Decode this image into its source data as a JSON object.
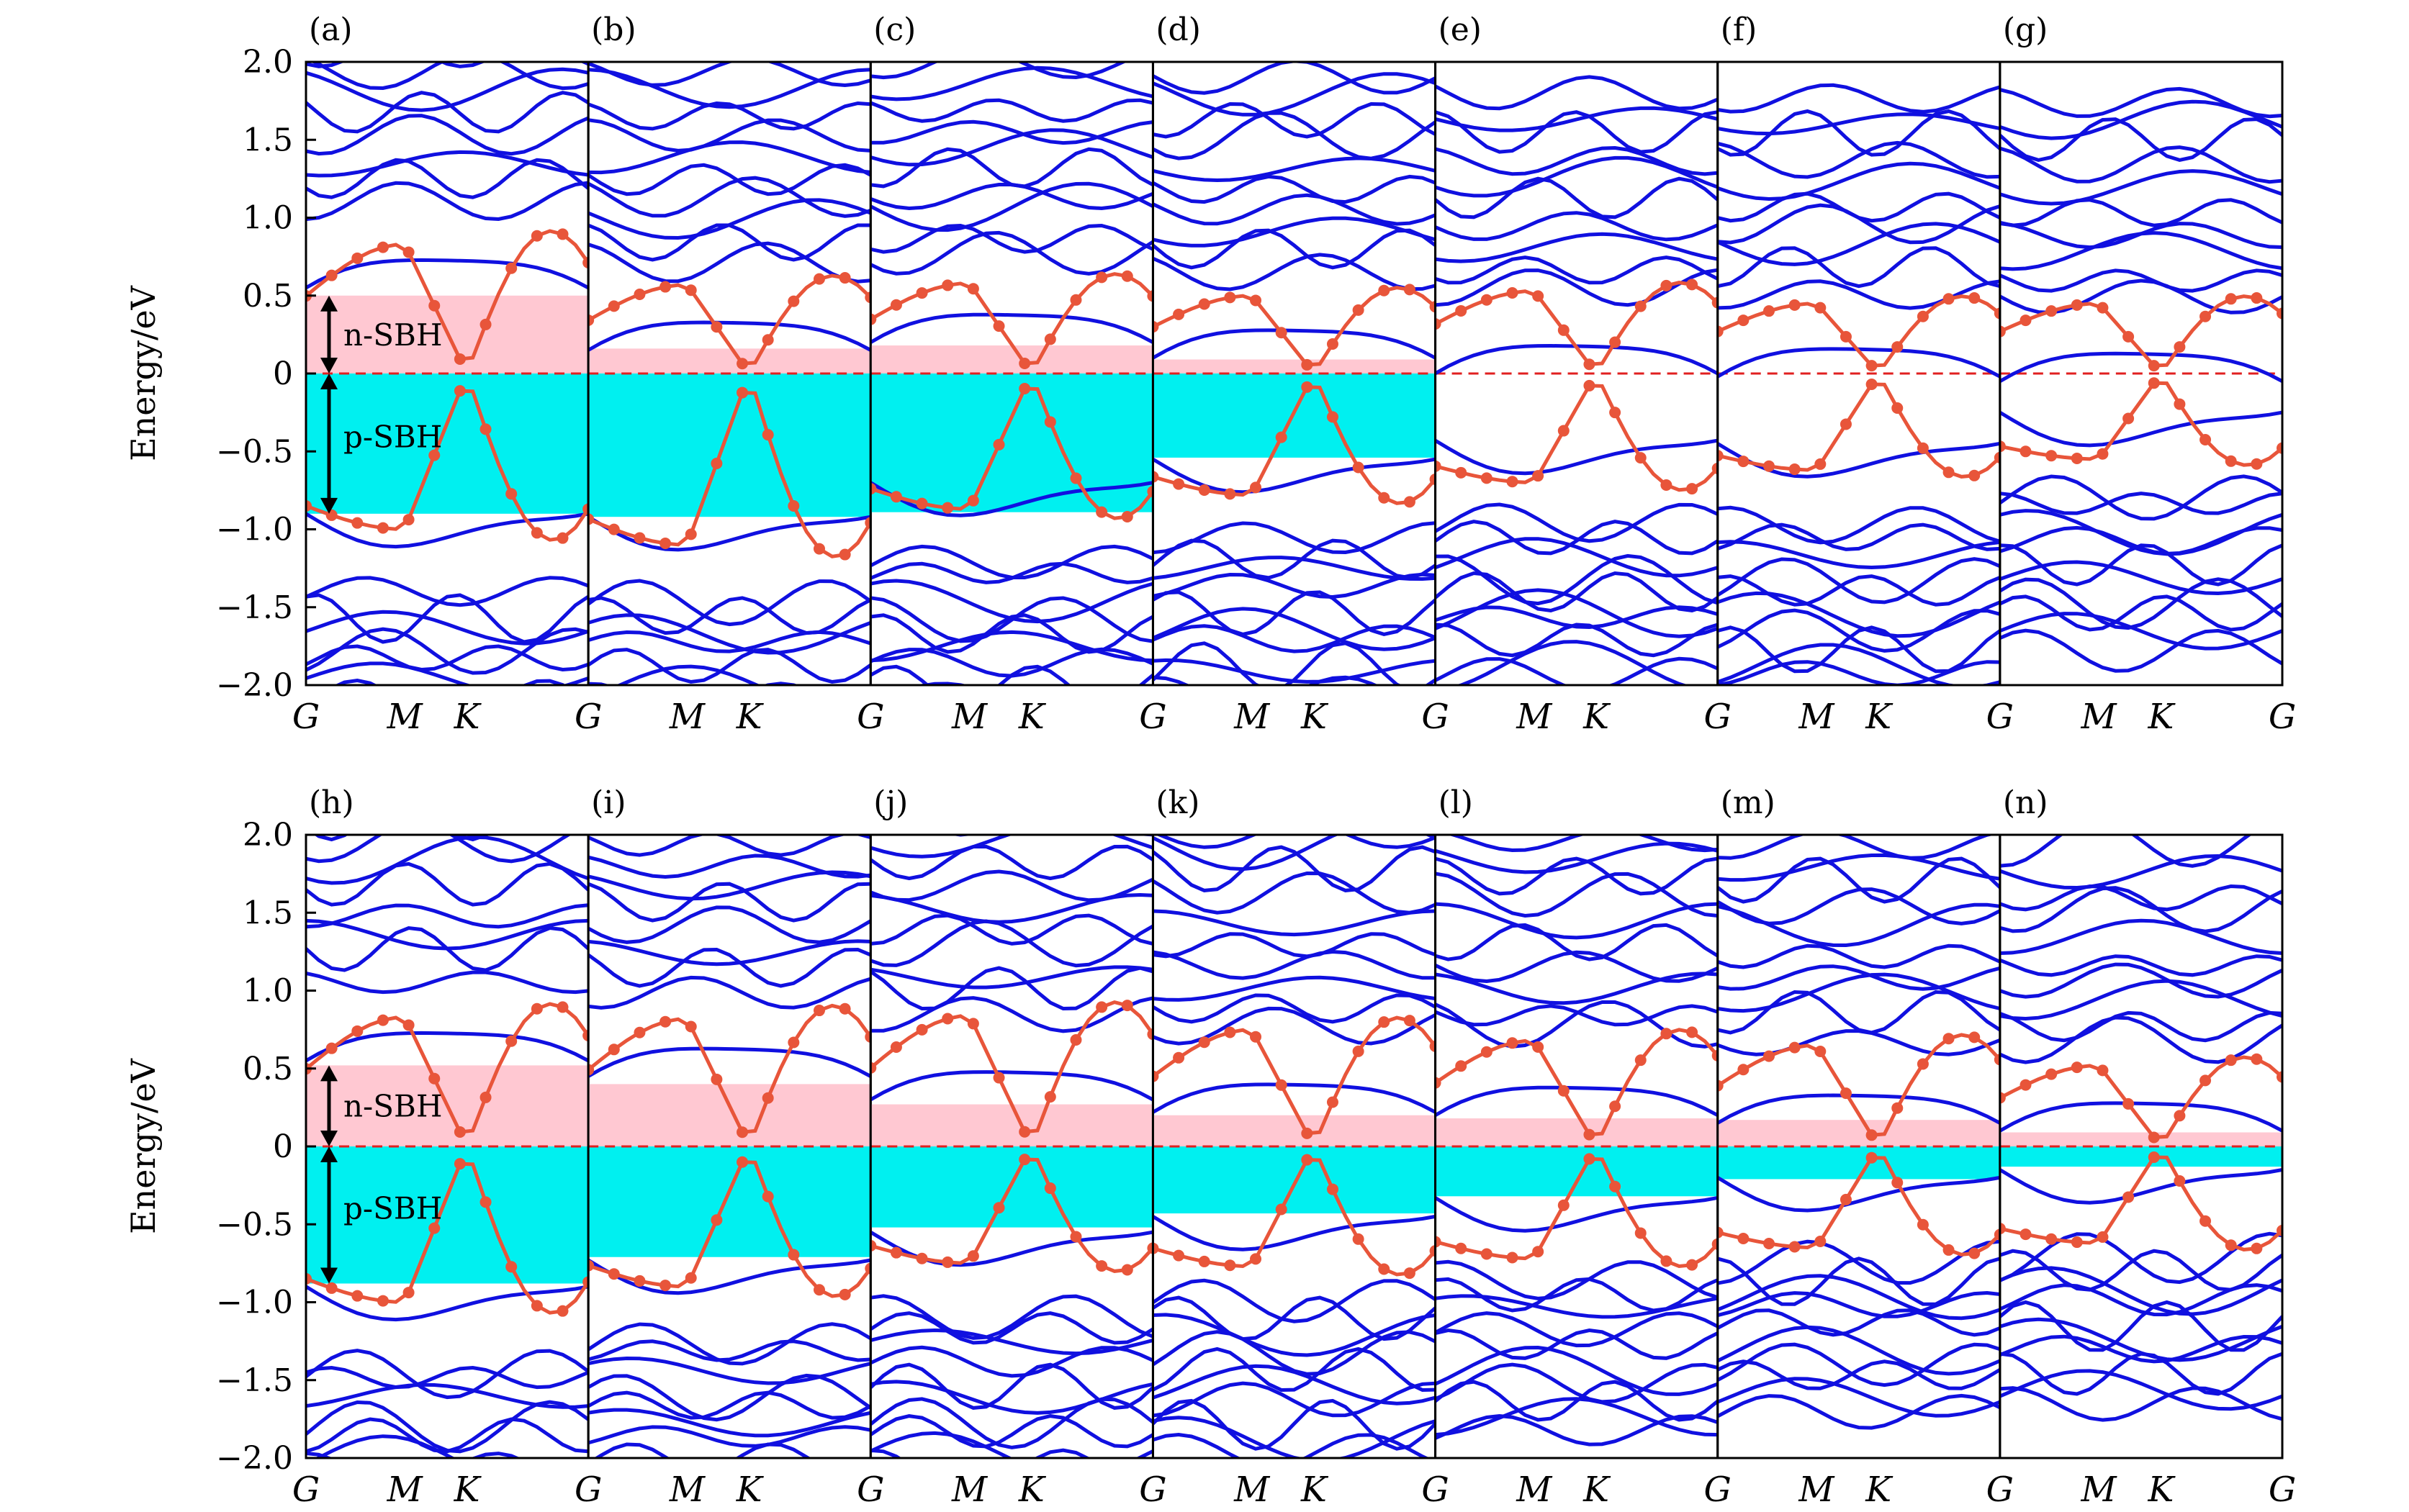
{
  "chart_data": {
    "type": "line",
    "ylabel": "Energy/eV",
    "ylim": [
      -2.0,
      2.0
    ],
    "yticks": [
      "2.0",
      "1.5",
      "1.0",
      "0.5",
      "0",
      "−0.5",
      "−1.0",
      "−1.5",
      "−2.0"
    ],
    "ytick_values": [
      2.0,
      1.5,
      1.0,
      0.5,
      0,
      -0.5,
      -1.0,
      -1.5,
      -2.0
    ],
    "kpath_labels": [
      "G",
      "M",
      "K",
      "G"
    ],
    "fermi_level": 0,
    "colors": {
      "bands": "#1010e0",
      "dirac": "#e8553a",
      "n_sbh": "#ffc8d2",
      "p_sbh": "#00f0f0",
      "fermi": "#e02020"
    },
    "annotations": {
      "n_sbh": "n-SBH",
      "p_sbh": "p-SBH"
    },
    "rows": [
      {
        "panels": [
          {
            "label": "(a)",
            "n_sbh": 0.5,
            "p_sbh": -0.9,
            "cb_min": 0.55,
            "vb_max": -0.9,
            "dirac_top": 0.83,
            "dirac_bottom": -1.0
          },
          {
            "label": "(b)",
            "n_sbh": 0.16,
            "p_sbh": -0.92,
            "cb_min": 0.15,
            "vb_max": -0.92,
            "dirac_top": 0.57,
            "dirac_bottom": -1.1
          },
          {
            "label": "(c)",
            "n_sbh": 0.18,
            "p_sbh": -0.89,
            "cb_min": 0.2,
            "vb_max": -0.7,
            "dirac_top": 0.58,
            "dirac_bottom": -0.87
          },
          {
            "label": "(d)",
            "n_sbh": 0.09,
            "p_sbh": -0.54,
            "cb_min": 0.1,
            "vb_max": -0.55,
            "dirac_top": 0.5,
            "dirac_bottom": -0.78
          },
          {
            "label": "(e)",
            "n_sbh": 0.0,
            "p_sbh": 0.0,
            "cb_min": 0.0,
            "vb_max": -0.43,
            "dirac_top": 0.53,
            "dirac_bottom": -0.7
          },
          {
            "label": "(f)",
            "n_sbh": 0.0,
            "p_sbh": 0.0,
            "cb_min": -0.02,
            "vb_max": -0.45,
            "dirac_top": 0.45,
            "dirac_bottom": -0.62
          },
          {
            "label": "(g)",
            "n_sbh": 0.0,
            "p_sbh": 0.0,
            "cb_min": -0.05,
            "vb_max": -0.25,
            "dirac_top": 0.45,
            "dirac_bottom": -0.55
          }
        ]
      },
      {
        "panels": [
          {
            "label": "(h)",
            "n_sbh": 0.52,
            "p_sbh": -0.88,
            "cb_min": 0.55,
            "vb_max": -0.9,
            "dirac_top": 0.83,
            "dirac_bottom": -1.0
          },
          {
            "label": "(i)",
            "n_sbh": 0.4,
            "p_sbh": -0.71,
            "cb_min": 0.45,
            "vb_max": -0.73,
            "dirac_top": 0.82,
            "dirac_bottom": -0.9
          },
          {
            "label": "(j)",
            "n_sbh": 0.27,
            "p_sbh": -0.52,
            "cb_min": 0.3,
            "vb_max": -0.55,
            "dirac_top": 0.84,
            "dirac_bottom": -0.75
          },
          {
            "label": "(k)",
            "n_sbh": 0.2,
            "p_sbh": -0.43,
            "cb_min": 0.22,
            "vb_max": -0.45,
            "dirac_top": 0.75,
            "dirac_bottom": -0.77
          },
          {
            "label": "(l)",
            "n_sbh": 0.18,
            "p_sbh": -0.32,
            "cb_min": 0.2,
            "vb_max": -0.33,
            "dirac_top": 0.68,
            "dirac_bottom": -0.72
          },
          {
            "label": "(m)",
            "n_sbh": 0.17,
            "p_sbh": -0.21,
            "cb_min": 0.15,
            "vb_max": -0.2,
            "dirac_top": 0.65,
            "dirac_bottom": -0.65
          },
          {
            "label": "(n)",
            "n_sbh": 0.09,
            "p_sbh": -0.13,
            "cb_min": 0.1,
            "vb_max": -0.15,
            "dirac_top": 0.52,
            "dirac_bottom": -0.62
          }
        ]
      }
    ]
  }
}
